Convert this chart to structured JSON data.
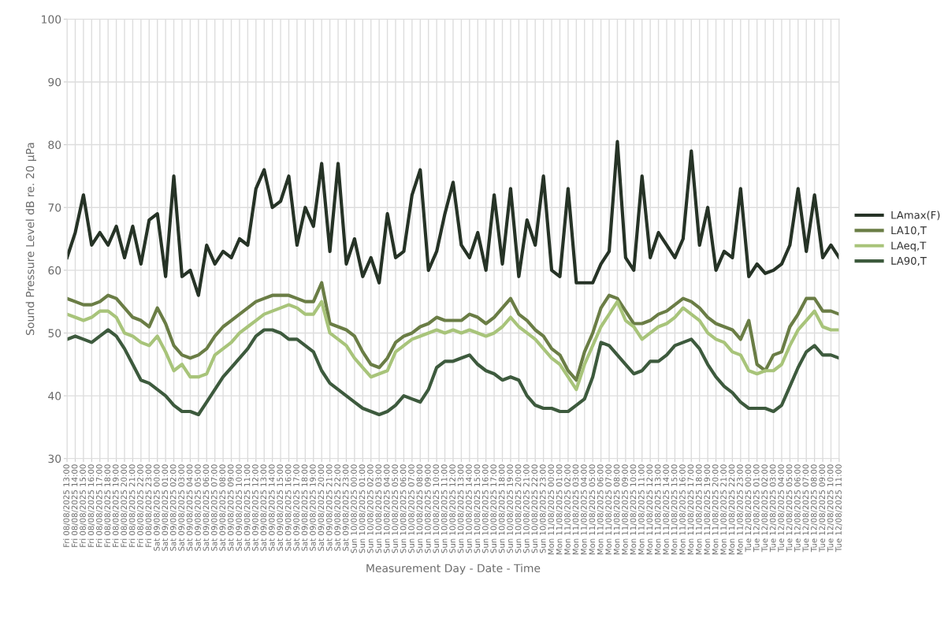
{
  "chart_data": {
    "type": "line",
    "xlabel": "Measurement Day - Date - Time",
    "ylabel": "Sound Pressure Level dB re. 20 µPa",
    "categories": [
      "Fri 08/08/2025 13:00",
      "Fri 08/08/2025 14:00",
      "Fri 08/08/2025 15:00",
      "Fri 08/08/2025 16:00",
      "Fri 08/08/2025 17:00",
      "Fri 08/08/2025 18:00",
      "Fri 08/08/2025 19:00",
      "Fri 08/08/2025 20:00",
      "Fri 08/08/2025 21:00",
      "Fri 08/08/2025 22:00",
      "Fri 08/08/2025 23:00",
      "Sat 09/08/2025 00:00",
      "Sat 09/08/2025 01:00",
      "Sat 09/08/2025 02:00",
      "Sat 09/08/2025 03:00",
      "Sat 09/08/2025 04:00",
      "Sat 09/08/2025 05:00",
      "Sat 09/08/2025 06:00",
      "Sat 09/08/2025 07:00",
      "Sat 09/08/2025 08:00",
      "Sat 09/08/2025 09:00",
      "Sat 09/08/2025 10:00",
      "Sat 09/08/2025 11:00",
      "Sat 09/08/2025 12:00",
      "Sat 09/08/2025 13:00",
      "Sat 09/08/2025 14:00",
      "Sat 09/08/2025 15:00",
      "Sat 09/08/2025 16:00",
      "Sat 09/08/2025 17:00",
      "Sat 09/08/2025 18:00",
      "Sat 09/08/2025 19:00",
      "Sat 09/08/2025 20:00",
      "Sat 09/08/2025 21:00",
      "Sat 09/08/2025 22:00",
      "Sat 09/08/2025 23:00",
      "Sun 10/08/2025 00:00",
      "Sun 10/08/2025 01:00",
      "Sun 10/08/2025 02:00",
      "Sun 10/08/2025 03:00",
      "Sun 10/08/2025 04:00",
      "Sun 10/08/2025 05:00",
      "Sun 10/08/2025 06:00",
      "Sun 10/08/2025 07:00",
      "Sun 10/08/2025 08:00",
      "Sun 10/08/2025 09:00",
      "Sun 10/08/2025 10:00",
      "Sun 10/08/2025 11:00",
      "Sun 10/08/2025 12:00",
      "Sun 10/08/2025 13:00",
      "Sun 10/08/2025 14:00",
      "Sun 10/08/2025 15:00",
      "Sun 10/08/2025 16:00",
      "Sun 10/08/2025 17:00",
      "Sun 10/08/2025 18:00",
      "Sun 10/08/2025 19:00",
      "Sun 10/08/2025 20:00",
      "Sun 10/08/2025 21:00",
      "Sun 10/08/2025 22:00",
      "Sun 10/08/2025 23:00",
      "Mon 11/08/2025 00:00",
      "Mon 11/08/2025 01:00",
      "Mon 11/08/2025 02:00",
      "Mon 11/08/2025 03:00",
      "Mon 11/08/2025 04:00",
      "Mon 11/08/2025 05:00",
      "Mon 11/08/2025 06:00",
      "Mon 11/08/2025 07:00",
      "Mon 11/08/2025 08:00",
      "Mon 11/08/2025 09:00",
      "Mon 11/08/2025 10:00",
      "Mon 11/08/2025 11:00",
      "Mon 11/08/2025 12:00",
      "Mon 11/08/2025 13:00",
      "Mon 11/08/2025 14:00",
      "Mon 11/08/2025 15:00",
      "Mon 11/08/2025 16:00",
      "Mon 11/08/2025 17:00",
      "Mon 11/08/2025 18:00",
      "Mon 11/08/2025 19:00",
      "Mon 11/08/2025 20:00",
      "Mon 11/08/2025 21:00",
      "Mon 11/08/2025 22:00",
      "Mon 11/08/2025 23:00",
      "Tue 12/08/2025 00:00",
      "Tue 12/08/2025 01:00",
      "Tue 12/08/2025 02:00",
      "Tue 12/08/2025 03:00",
      "Tue 12/08/2025 04:00",
      "Tue 12/08/2025 05:00",
      "Tue 12/08/2025 06:00",
      "Tue 12/08/2025 07:00",
      "Tue 12/08/2025 08:00",
      "Tue 12/08/2025 09:00",
      "Tue 12/08/2025 10:00",
      "Tue 12/08/2025 11:00"
    ],
    "series": [
      {
        "name": "LAmax(F)",
        "color": "#263326",
        "values": [
          62,
          66,
          72,
          64,
          66,
          64,
          67,
          62,
          67,
          61,
          68,
          69,
          59,
          75,
          59,
          60,
          56,
          64,
          61,
          63,
          62,
          65,
          64,
          73,
          76,
          70,
          71,
          75,
          64,
          70,
          67,
          77,
          63,
          77,
          61,
          65,
          59,
          62,
          58,
          69,
          62,
          63,
          72,
          76,
          60,
          63,
          69,
          74,
          64,
          62,
          66,
          60,
          72,
          61,
          73,
          59,
          68,
          64,
          75,
          60,
          59,
          73,
          58,
          58,
          58,
          61,
          63,
          80.5,
          62,
          60,
          75,
          62,
          66,
          64,
          62,
          65,
          79,
          64,
          70,
          60,
          63,
          62,
          73,
          59,
          61,
          59.5,
          60,
          61,
          64,
          73,
          63,
          72,
          62,
          64,
          62
        ]
      },
      {
        "name": "LA10,T",
        "color": "#6a7d45",
        "values": [
          55.5,
          55,
          54.5,
          54.5,
          55,
          56,
          55.5,
          54,
          52.5,
          52,
          51,
          54,
          51.5,
          48,
          46.5,
          46,
          46.5,
          47.5,
          49.5,
          51,
          52,
          53,
          54,
          55,
          55.5,
          56,
          56,
          56,
          55.5,
          55,
          55,
          58,
          51.5,
          51,
          50.5,
          49.5,
          47,
          45,
          44.5,
          46,
          48.5,
          49.5,
          50,
          51,
          51.5,
          52.5,
          52,
          52,
          52,
          53,
          52.5,
          51.5,
          52.5,
          54,
          55.5,
          53,
          52,
          50.5,
          49.5,
          47.5,
          46.5,
          44,
          42.5,
          47,
          50,
          54,
          56,
          55.5,
          53.5,
          51.5,
          51.5,
          52,
          53,
          53.5,
          54.5,
          55.5,
          55,
          54,
          52.5,
          51.5,
          51,
          50.5,
          49,
          52,
          45,
          44,
          46.5,
          47,
          51,
          53,
          55.5,
          55.5,
          53.5,
          53.5,
          53
        ]
      },
      {
        "name": "LAeq,T",
        "color": "#a8c47a",
        "values": [
          53,
          52.5,
          52,
          52.5,
          53.5,
          53.5,
          52.5,
          50,
          49.5,
          48.5,
          48,
          49.5,
          47,
          44,
          45,
          43,
          43,
          43.5,
          46.5,
          47.5,
          48.5,
          50,
          51,
          52,
          53,
          53.5,
          54,
          54.5,
          54,
          53,
          53,
          55,
          50,
          49,
          48,
          46,
          44.5,
          43,
          43.5,
          44,
          47,
          48,
          49,
          49.5,
          50,
          50.5,
          50,
          50.5,
          50,
          50.5,
          50,
          49.5,
          50,
          51,
          52.5,
          51,
          50,
          49,
          47.5,
          46,
          45,
          43,
          41,
          45,
          48,
          51,
          53,
          55,
          52,
          51,
          49,
          50,
          51,
          51.5,
          52.5,
          54,
          53,
          52,
          50,
          49,
          48.5,
          47,
          46.5,
          44,
          43.5,
          44,
          44,
          45,
          48,
          50.5,
          52,
          53.5,
          51,
          50.5,
          50.5
        ]
      },
      {
        "name": "LA90,T",
        "color": "#3d5a3d",
        "values": [
          49,
          49.5,
          49,
          48.5,
          49.5,
          50.5,
          49.5,
          47.5,
          45,
          42.5,
          42,
          41,
          40,
          38.5,
          37.5,
          37.5,
          37,
          39,
          41,
          43,
          44.5,
          46,
          47.5,
          49.5,
          50.5,
          50.5,
          50,
          49,
          49,
          48,
          47,
          44,
          42,
          41,
          40,
          39,
          38,
          37.5,
          37,
          37.5,
          38.5,
          40,
          39.5,
          39,
          41,
          44.5,
          45.5,
          45.5,
          46,
          46.5,
          45,
          44,
          43.5,
          42.5,
          43,
          42.5,
          40,
          38.5,
          38,
          38,
          37.5,
          37.5,
          38.5,
          39.5,
          43,
          48.5,
          48,
          46.5,
          45,
          43.5,
          44,
          45.5,
          45.5,
          46.5,
          48,
          48.5,
          49,
          47.5,
          45,
          43,
          41.5,
          40.5,
          39,
          38,
          38,
          38,
          37.5,
          38.5,
          41.5,
          44.5,
          47,
          48,
          46.5,
          46.5,
          46
        ]
      }
    ],
    "ylim": [
      30,
      100
    ],
    "yticks": [
      30,
      40,
      50,
      60,
      70,
      80,
      90,
      100
    ],
    "grid": true,
    "legend": "right",
    "marker": "none",
    "line_style": "solid"
  }
}
